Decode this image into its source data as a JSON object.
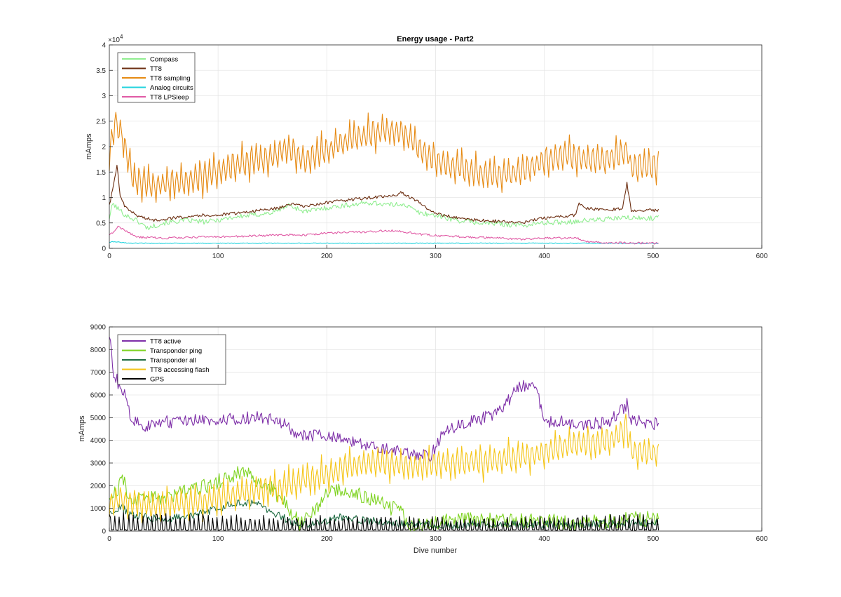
{
  "chart_data": [
    {
      "type": "line",
      "title": "Energy usage - Part2",
      "xlabel": "",
      "ylabel": "mAmps",
      "xlim": [
        0,
        600
      ],
      "ylim": [
        0,
        40000
      ],
      "xticks": [
        0,
        100,
        200,
        300,
        400,
        500,
        600
      ],
      "yticks": [
        0,
        5000,
        10000,
        15000,
        20000,
        25000,
        30000,
        35000,
        40000
      ],
      "ytick_labels": [
        "0",
        "0.5",
        "1",
        "1.5",
        "2",
        "2.5",
        "3",
        "3.5",
        "4"
      ],
      "y_exponent_label": "×10",
      "y_exponent_power": "4",
      "grid": true,
      "legend_position": "top-left",
      "series": [
        {
          "name": "Compass",
          "color": "#90ee90",
          "kind": "level",
          "points": [
            [
              0,
              6000
            ],
            [
              3,
              8800
            ],
            [
              8,
              7800
            ],
            [
              15,
              6500
            ],
            [
              25,
              5500
            ],
            [
              35,
              4000
            ],
            [
              50,
              5000
            ],
            [
              70,
              5500
            ],
            [
              90,
              5200
            ],
            [
              110,
              6000
            ],
            [
              130,
              6500
            ],
            [
              150,
              7000
            ],
            [
              158,
              7800
            ],
            [
              165,
              8500
            ],
            [
              180,
              7200
            ],
            [
              200,
              8000
            ],
            [
              220,
              8500
            ],
            [
              240,
              9000
            ],
            [
              260,
              8500
            ],
            [
              270,
              8800
            ],
            [
              285,
              7000
            ],
            [
              300,
              6500
            ],
            [
              320,
              5500
            ],
            [
              340,
              5000
            ],
            [
              360,
              4800
            ],
            [
              380,
              4500
            ],
            [
              400,
              5000
            ],
            [
              420,
              5200
            ],
            [
              440,
              5500
            ],
            [
              460,
              5800
            ],
            [
              475,
              6000
            ],
            [
              490,
              5900
            ],
            [
              505,
              6000
            ]
          ],
          "amp": 500,
          "period": 3
        },
        {
          "name": "TT8",
          "color": "#6b2d10",
          "kind": "level",
          "points": [
            [
              0,
              8500
            ],
            [
              4,
              12500
            ],
            [
              7,
              16500
            ],
            [
              10,
              10000
            ],
            [
              15,
              8000
            ],
            [
              25,
              6500
            ],
            [
              40,
              5500
            ],
            [
              60,
              6000
            ],
            [
              80,
              6500
            ],
            [
              100,
              6500
            ],
            [
              120,
              7000
            ],
            [
              140,
              7500
            ],
            [
              158,
              8000
            ],
            [
              165,
              8800
            ],
            [
              180,
              8200
            ],
            [
              200,
              9000
            ],
            [
              220,
              9500
            ],
            [
              240,
              10000
            ],
            [
              260,
              10200
            ],
            [
              268,
              11000
            ],
            [
              285,
              9000
            ],
            [
              300,
              6800
            ],
            [
              320,
              6000
            ],
            [
              340,
              5500
            ],
            [
              360,
              5300
            ],
            [
              380,
              5000
            ],
            [
              400,
              6000
            ],
            [
              420,
              6300
            ],
            [
              428,
              6500
            ],
            [
              432,
              8700
            ],
            [
              440,
              7800
            ],
            [
              460,
              7600
            ],
            [
              472,
              7800
            ],
            [
              476,
              12800
            ],
            [
              480,
              7500
            ],
            [
              505,
              7500
            ]
          ],
          "amp": 300,
          "period": 3
        },
        {
          "name": "TT8 sampling",
          "color": "#e68a13",
          "kind": "spiky",
          "points": [
            [
              0,
              17000
            ],
            [
              5,
              25000
            ],
            [
              12,
              22000
            ],
            [
              22,
              13000
            ],
            [
              40,
              12000
            ],
            [
              70,
              13000
            ],
            [
              90,
              14000
            ],
            [
              110,
              15500
            ],
            [
              130,
              17000
            ],
            [
              150,
              17500
            ],
            [
              162,
              19500
            ],
            [
              172,
              18000
            ],
            [
              180,
              17000
            ],
            [
              200,
              19000
            ],
            [
              220,
              21000
            ],
            [
              240,
              22000
            ],
            [
              255,
              23000
            ],
            [
              270,
              22500
            ],
            [
              285,
              19000
            ],
            [
              300,
              17000
            ],
            [
              320,
              15500
            ],
            [
              340,
              14500
            ],
            [
              360,
              14000
            ],
            [
              380,
              15000
            ],
            [
              400,
              17000
            ],
            [
              420,
              18000
            ],
            [
              440,
              17000
            ],
            [
              460,
              17500
            ],
            [
              476,
              19000
            ],
            [
              480,
              15500
            ],
            [
              505,
              16000
            ]
          ],
          "amp": 6500,
          "period": 4.3
        },
        {
          "name": "Analog circuits",
          "color": "#22d3dd",
          "kind": "level",
          "points": [
            [
              0,
              1200
            ],
            [
              4,
              1300
            ],
            [
              20,
              1000
            ],
            [
              100,
              1000
            ],
            [
              200,
              1000
            ],
            [
              300,
              1000
            ],
            [
              400,
              1000
            ],
            [
              505,
              1000
            ]
          ],
          "amp": 80,
          "period": 3
        },
        {
          "name": "TT8 LPSleep",
          "color": "#e05aa5",
          "kind": "level",
          "points": [
            [
              0,
              2500
            ],
            [
              8,
              4200
            ],
            [
              15,
              3500
            ],
            [
              25,
              2200
            ],
            [
              50,
              2000
            ],
            [
              80,
              2200
            ],
            [
              110,
              2300
            ],
            [
              140,
              2500
            ],
            [
              170,
              2700
            ],
            [
              180,
              2600
            ],
            [
              200,
              3000
            ],
            [
              240,
              3300
            ],
            [
              265,
              3500
            ],
            [
              285,
              2800
            ],
            [
              300,
              2500
            ],
            [
              330,
              2200
            ],
            [
              360,
              2000
            ],
            [
              380,
              1800
            ],
            [
              400,
              2000
            ],
            [
              430,
              2000
            ],
            [
              440,
              1300
            ],
            [
              460,
              1100
            ],
            [
              505,
              1000
            ]
          ],
          "amp": 200,
          "period": 3
        }
      ]
    },
    {
      "type": "line",
      "title": "",
      "xlabel": "Dive number",
      "ylabel": "mAmps",
      "xlim": [
        0,
        600
      ],
      "ylim": [
        0,
        9000
      ],
      "xticks": [
        0,
        100,
        200,
        300,
        400,
        500,
        600
      ],
      "yticks": [
        0,
        1000,
        2000,
        3000,
        4000,
        5000,
        6000,
        7000,
        8000,
        9000
      ],
      "ytick_labels": [
        "0",
        "1000",
        "2000",
        "3000",
        "4000",
        "5000",
        "6000",
        "7000",
        "8000",
        "9000"
      ],
      "grid": true,
      "legend_position": "top-left",
      "series": [
        {
          "name": "TT8 active",
          "color": "#7e2fa8",
          "kind": "level",
          "points": [
            [
              0,
              8800
            ],
            [
              4,
              7000
            ],
            [
              10,
              6300
            ],
            [
              15,
              6000
            ],
            [
              20,
              5000
            ],
            [
              30,
              4600
            ],
            [
              50,
              4800
            ],
            [
              80,
              4900
            ],
            [
              100,
              4800
            ],
            [
              120,
              5000
            ],
            [
              140,
              5000
            ],
            [
              158,
              4800
            ],
            [
              170,
              4300
            ],
            [
              185,
              4200
            ],
            [
              200,
              4200
            ],
            [
              220,
              4000
            ],
            [
              240,
              3800
            ],
            [
              260,
              3600
            ],
            [
              280,
              3400
            ],
            [
              295,
              3300
            ],
            [
              305,
              4200
            ],
            [
              320,
              4700
            ],
            [
              340,
              4900
            ],
            [
              360,
              5300
            ],
            [
              375,
              6300
            ],
            [
              390,
              6500
            ],
            [
              397,
              5500
            ],
            [
              400,
              4800
            ],
            [
              420,
              4800
            ],
            [
              440,
              4700
            ],
            [
              460,
              4800
            ],
            [
              476,
              5600
            ],
            [
              480,
              4900
            ],
            [
              505,
              4700
            ]
          ],
          "amp": 280,
          "period": 3
        },
        {
          "name": "Transponder ping",
          "color": "#7ed321",
          "kind": "patchy",
          "points": [
            [
              0,
              1500
            ],
            [
              8,
              1900
            ],
            [
              12,
              2400
            ],
            [
              18,
              1500
            ],
            [
              40,
              1400
            ],
            [
              60,
              1600
            ],
            [
              80,
              1800
            ],
            [
              100,
              2200
            ],
            [
              120,
              2600
            ],
            [
              130,
              2400
            ],
            [
              150,
              1800
            ],
            [
              165,
              1000
            ],
            [
              175,
              300
            ],
            [
              185,
              600
            ],
            [
              200,
              1600
            ],
            [
              215,
              1900
            ],
            [
              230,
              1600
            ],
            [
              250,
              1200
            ],
            [
              270,
              800
            ],
            [
              275,
              300
            ],
            [
              300,
              400
            ],
            [
              350,
              500
            ],
            [
              400,
              400
            ],
            [
              450,
              400
            ],
            [
              480,
              500
            ],
            [
              505,
              550
            ]
          ],
          "amp": 350,
          "period": 3.5
        },
        {
          "name": "Transponder all",
          "color": "#1e6b42",
          "kind": "patchy",
          "points": [
            [
              0,
              700
            ],
            [
              10,
              1100
            ],
            [
              20,
              700
            ],
            [
              50,
              500
            ],
            [
              80,
              700
            ],
            [
              100,
              1000
            ],
            [
              120,
              1300
            ],
            [
              140,
              1100
            ],
            [
              160,
              600
            ],
            [
              175,
              250
            ],
            [
              190,
              300
            ],
            [
              210,
              600
            ],
            [
              230,
              500
            ],
            [
              250,
              400
            ],
            [
              270,
              300
            ],
            [
              300,
              250
            ],
            [
              350,
              300
            ],
            [
              400,
              280
            ],
            [
              450,
              300
            ],
            [
              505,
              350
            ]
          ],
          "amp": 180,
          "period": 3.5
        },
        {
          "name": "TT8 accessing flash",
          "color": "#f5c518",
          "kind": "spiky",
          "points": [
            [
              0,
              1100
            ],
            [
              10,
              1300
            ],
            [
              40,
              1000
            ],
            [
              80,
              1200
            ],
            [
              120,
              1600
            ],
            [
              160,
              1900
            ],
            [
              180,
              2200
            ],
            [
              200,
              2400
            ],
            [
              220,
              2800
            ],
            [
              240,
              2900
            ],
            [
              260,
              2900
            ],
            [
              280,
              2800
            ],
            [
              300,
              2900
            ],
            [
              320,
              3000
            ],
            [
              340,
              3000
            ],
            [
              360,
              3100
            ],
            [
              380,
              3200
            ],
            [
              400,
              3400
            ],
            [
              420,
              3700
            ],
            [
              440,
              3800
            ],
            [
              460,
              3900
            ],
            [
              476,
              4500
            ],
            [
              480,
              3400
            ],
            [
              505,
              3400
            ]
          ],
          "amp": 1400,
          "period": 4.3
        },
        {
          "name": "GPS",
          "color": "#000000",
          "kind": "gps",
          "points": [
            [
              0,
              400
            ],
            [
              100,
              300
            ],
            [
              200,
              250
            ],
            [
              300,
              200
            ],
            [
              400,
              250
            ],
            [
              505,
              300
            ]
          ],
          "amp": 300,
          "period": 4.3
        }
      ]
    }
  ]
}
